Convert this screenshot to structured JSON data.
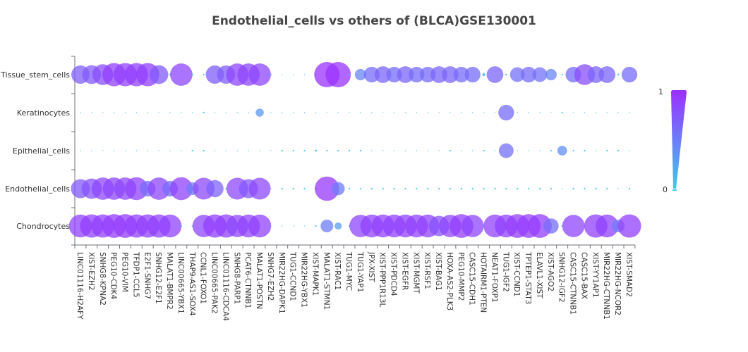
{
  "chart_data": {
    "type": "scatter",
    "subtype": "bubble",
    "title": "Endothelial_cells vs others of (BLCA)GSE130001",
    "xlabel": "",
    "ylabel": "",
    "highlight_category": "Endothelial_cells",
    "highlight_color": "#ff0000",
    "y_categories": [
      "Tissue_stem_cells",
      "Keratinocytes",
      "Epithelial_cells",
      "Endothelial_cells",
      "Chondrocytes"
    ],
    "x_categories": [
      "LINC01116-H2AFY",
      "XIST-EZH2",
      "SNHG8-KPNA2",
      "PEG10-CDK4",
      "PEG10-VIM",
      "TFDP1-CCL5",
      "E2F1-SNHG7",
      "SNHG12-E2F1",
      "MALAT1-BMPR2",
      "LINC00665-YBX1",
      "THAP9-AS1-SOX4",
      "CCNL1-FOXO1",
      "LINC00665-PAK2",
      "LINC01116-CDCA4",
      "SNHG8-PARP1",
      "PCAT6-CTNNB1",
      "MALAT1-POSTN",
      "SNHG7-EZH2",
      "MIR22HG-DAPK1",
      "TUG1-CCND1",
      "MIR22HG-YBX1",
      "XIST-MAPK1",
      "MALAT1-STMN1",
      "XIST-RAC1",
      "TUG1-MYC",
      "TUG1-YAP1",
      "JPX-XIST",
      "XIST-PPP1R13L",
      "XIST-PDCD4",
      "XIST-EGFR",
      "XIST-MGMT",
      "XIST-RSF1",
      "XIST-BAG1",
      "HOXA-AS2-PLK3",
      "PEG10-MMP2",
      "CASC15-CDH1",
      "HOTAIRM1-PTEN",
      "NEAT1-FOXP1",
      "TUG1-IGF2",
      "XIST-CCND1",
      "TPTEP1-STAT3",
      "ELAVL1-XIST",
      "XIST-AGO2",
      "SNHG12-IGF2",
      "CASC15-CTNNB1",
      "CASC15-BAX",
      "XIST-YY1AP1",
      "MIR22HG-CTNNB1",
      "MIR22HG-NCOR2",
      "XIST-SMAD2"
    ],
    "series": [
      {
        "name": "Tissue_stem_cells",
        "values": [
          0.72,
          0.74,
          0.82,
          0.92,
          0.92,
          0.92,
          0.92,
          0.74,
          0.02,
          0.88,
          0.01,
          0.06,
          0.72,
          0.72,
          0.88,
          0.88,
          0.88,
          0.02,
          0.0,
          0.0,
          0.0,
          0.01,
          1.0,
          1.0,
          0.02,
          0.45,
          0.62,
          0.66,
          0.62,
          0.66,
          0.62,
          0.62,
          0.66,
          0.66,
          0.62,
          0.62,
          0.12,
          0.66,
          0.02,
          0.58,
          0.62,
          0.58,
          0.45,
          0.02,
          0.62,
          0.82,
          0.66,
          0.66,
          0.08,
          0.62
        ]
      },
      {
        "name": "Keratinocytes",
        "values": [
          0.0,
          0.0,
          0.0,
          0.0,
          0.0,
          0.0,
          0.0,
          0.0,
          0.0,
          0.0,
          0.0,
          0.02,
          0.0,
          0.0,
          0.0,
          0.0,
          0.32,
          0.0,
          0.0,
          0.0,
          0.0,
          0.0,
          0.0,
          0.0,
          0.0,
          0.0,
          0.0,
          0.0,
          0.0,
          0.0,
          0.0,
          0.0,
          0.0,
          0.0,
          0.0,
          0.0,
          0.0,
          0.0,
          0.62,
          0.0,
          0.0,
          0.0,
          0.0,
          0.02,
          0.0,
          0.0,
          0.0,
          0.0,
          0.0,
          0.0
        ]
      },
      {
        "name": "Epithelial_cells",
        "values": [
          0.0,
          0.0,
          0.0,
          0.0,
          0.0,
          0.0,
          0.0,
          0.0,
          0.0,
          0.0,
          0.01,
          0.02,
          0.0,
          0.0,
          0.0,
          0.0,
          0.0,
          0.0,
          0.05,
          0.05,
          0.05,
          0.08,
          0.02,
          0.05,
          0.05,
          0.05,
          0.0,
          0.0,
          0.0,
          0.0,
          0.0,
          0.0,
          0.0,
          0.05,
          0.0,
          0.0,
          0.04,
          0.0,
          0.58,
          0.0,
          0.0,
          0.0,
          0.01,
          0.38,
          0.02,
          0.02,
          0.0,
          0.02,
          0.05,
          0.0
        ]
      },
      {
        "name": "Endothelial_cells",
        "values": [
          0.75,
          0.8,
          0.88,
          0.88,
          0.88,
          0.9,
          0.62,
          0.88,
          0.62,
          0.9,
          0.5,
          0.86,
          0.68,
          0.02,
          0.86,
          0.75,
          0.86,
          0.0,
          0.02,
          0.02,
          0.02,
          0.04,
          0.96,
          0.52,
          0.02,
          0.02,
          0.02,
          0.02,
          0.02,
          0.04,
          0.01,
          0.02,
          0.01,
          0.01,
          0.05,
          0.02,
          0.02,
          0.02,
          0.01,
          0.01,
          0.04,
          0.02,
          0.02,
          0.0,
          0.04,
          0.02,
          0.02,
          0.01,
          0.0,
          0.01
        ]
      },
      {
        "name": "Chondrocytes",
        "values": [
          0.9,
          0.92,
          0.92,
          0.94,
          0.94,
          0.92,
          0.92,
          0.92,
          0.9,
          0.02,
          0.02,
          0.88,
          0.92,
          0.92,
          0.88,
          0.9,
          0.9,
          0.0,
          0.0,
          0.0,
          0.0,
          0.02,
          0.5,
          0.28,
          0.02,
          0.88,
          0.9,
          0.9,
          0.9,
          0.9,
          0.9,
          0.9,
          0.8,
          0.88,
          0.94,
          0.88,
          0.06,
          0.9,
          0.9,
          0.94,
          0.94,
          0.94,
          0.6,
          0.06,
          0.88,
          0.06,
          0.92,
          0.9,
          0.5,
          0.92
        ]
      }
    ],
    "color_scale": {
      "min": 0,
      "max": 1,
      "low_color": "#40c8ee",
      "high_color": "#9933ff"
    },
    "legend": {
      "position": "right",
      "max_label": "1",
      "min_label": "0"
    },
    "grid": false
  }
}
